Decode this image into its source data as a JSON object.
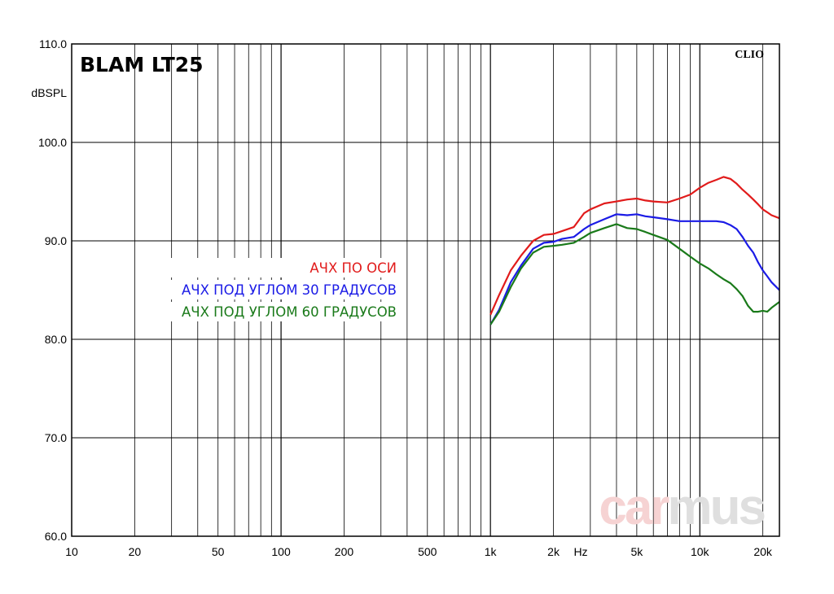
{
  "chart_data": {
    "type": "line",
    "title": "BLAM LT25",
    "brand": "CLIO",
    "watermark": {
      "part1": "car",
      "part2": "mus"
    },
    "xlabel": "Hz",
    "ylabel": "dBSPL",
    "x_scale": "log",
    "xlim": [
      10,
      24000
    ],
    "ylim": [
      60,
      110
    ],
    "x_ticks": [
      {
        "v": 10,
        "label": "10"
      },
      {
        "v": 20,
        "label": "20"
      },
      {
        "v": 50,
        "label": "50"
      },
      {
        "v": 100,
        "label": "100"
      },
      {
        "v": 200,
        "label": "200"
      },
      {
        "v": 500,
        "label": "500"
      },
      {
        "v": 1000,
        "label": "1k"
      },
      {
        "v": 2000,
        "label": "2k"
      },
      {
        "v": 5000,
        "label": "5k"
      },
      {
        "v": 10000,
        "label": "10k"
      },
      {
        "v": 20000,
        "label": "20k"
      }
    ],
    "y_ticks": [
      {
        "v": 60,
        "label": "60.0"
      },
      {
        "v": 70,
        "label": "70.0"
      },
      {
        "v": 80,
        "label": "80.0"
      },
      {
        "v": 90,
        "label": "90.0"
      },
      {
        "v": 100,
        "label": "100.0"
      },
      {
        "v": 110,
        "label": "110.0"
      }
    ],
    "grid": true,
    "legend_position": "center-left",
    "series": [
      {
        "name": "АЧХ ПО ОСИ",
        "color": "#e11b1b",
        "x": [
          1000,
          1100,
          1250,
          1400,
          1600,
          1800,
          2000,
          2200,
          2500,
          2800,
          3000,
          3500,
          4000,
          4500,
          5000,
          5500,
          6000,
          7000,
          8000,
          9000,
          10000,
          11000,
          12000,
          13000,
          14000,
          15000,
          16000,
          17000,
          18000,
          19000,
          20000,
          21000,
          22000,
          24000
        ],
        "y": [
          82.5,
          84.5,
          87.0,
          88.5,
          90.0,
          90.6,
          90.7,
          91.0,
          91.4,
          92.8,
          93.2,
          93.8,
          94.0,
          94.2,
          94.3,
          94.1,
          94.0,
          93.9,
          94.3,
          94.7,
          95.4,
          95.9,
          96.2,
          96.5,
          96.3,
          95.8,
          95.2,
          94.7,
          94.2,
          93.7,
          93.2,
          92.9,
          92.6,
          92.3
        ]
      },
      {
        "name": "АЧХ ПОД УГЛОМ 30 ГРАДУСОВ",
        "color": "#1b1be6",
        "x": [
          1000,
          1100,
          1250,
          1400,
          1600,
          1800,
          2000,
          2200,
          2500,
          2800,
          3000,
          3500,
          4000,
          4500,
          5000,
          5500,
          6000,
          7000,
          8000,
          9000,
          10000,
          11000,
          12000,
          13000,
          14000,
          15000,
          16000,
          17000,
          18000,
          19000,
          20000,
          21000,
          22000,
          24000
        ],
        "y": [
          81.5,
          83.0,
          85.8,
          87.5,
          89.2,
          89.8,
          89.9,
          90.2,
          90.4,
          91.2,
          91.6,
          92.2,
          92.7,
          92.6,
          92.7,
          92.5,
          92.4,
          92.2,
          92.0,
          92.0,
          92.0,
          92.0,
          92.0,
          91.9,
          91.6,
          91.2,
          90.4,
          89.5,
          88.8,
          87.8,
          87.0,
          86.4,
          85.8,
          85.0
        ]
      },
      {
        "name": "АЧХ ПОД УГЛОМ 60 ГРАДУСОВ",
        "color": "#1a7a1a",
        "x": [
          1000,
          1100,
          1250,
          1400,
          1600,
          1800,
          2000,
          2200,
          2500,
          2800,
          3000,
          3500,
          4000,
          4500,
          5000,
          5500,
          6000,
          7000,
          8000,
          9000,
          10000,
          11000,
          12000,
          13000,
          14000,
          15000,
          16000,
          17000,
          18000,
          19000,
          20000,
          21000,
          22000,
          24000
        ],
        "y": [
          81.5,
          82.8,
          85.3,
          87.2,
          88.8,
          89.4,
          89.5,
          89.6,
          89.8,
          90.4,
          90.8,
          91.3,
          91.7,
          91.3,
          91.2,
          90.9,
          90.6,
          90.1,
          89.2,
          88.4,
          87.7,
          87.2,
          86.6,
          86.1,
          85.7,
          85.1,
          84.4,
          83.4,
          82.8,
          82.8,
          82.9,
          82.8,
          83.2,
          83.8
        ]
      }
    ]
  }
}
